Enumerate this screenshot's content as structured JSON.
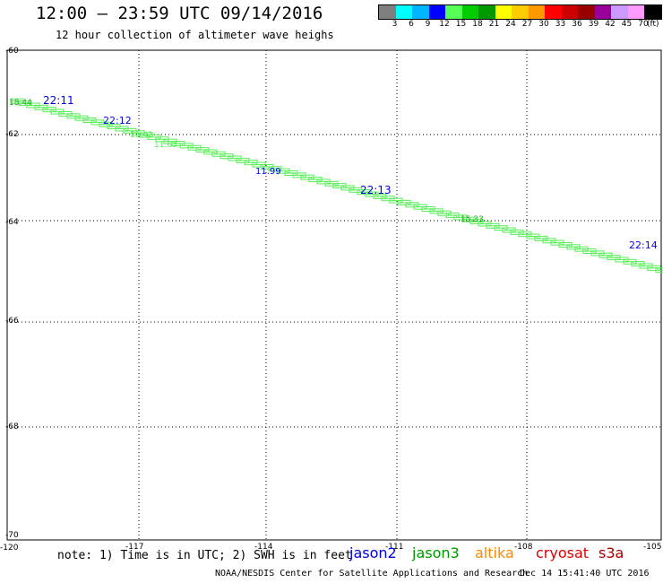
{
  "header": {
    "title": "12:00 – 23:59 UTC 09/14/2016",
    "subtitle": "12 hour collection of altimeter wave heighs"
  },
  "legend": {
    "colors": [
      "#7f7f7f",
      "#00ffff",
      "#00b4ff",
      "#0000ff",
      "#55ff55",
      "#00cc00",
      "#009900",
      "#ffff00",
      "#ffcc00",
      "#ff9900",
      "#ff0000",
      "#cc0000",
      "#990000",
      "#990099",
      "#cc99ff",
      "#ff99ff",
      "#000000"
    ],
    "labels": [
      "3",
      "6",
      "9",
      "12",
      "15",
      "18",
      "21",
      "24",
      "27",
      "30",
      "33",
      "36",
      "39",
      "42",
      "45",
      "70"
    ],
    "unit": "(ft)"
  },
  "axes": {
    "lat_ticks": [
      "-60",
      "-62",
      "-64",
      "-66",
      "-68",
      "-70"
    ],
    "lon_ticks": [
      "-120",
      "-117",
      "-114",
      "-111",
      "-108",
      "-105"
    ]
  },
  "tracks": {
    "jason3_color": "#22aa22",
    "jason3_light_color": "#55ee55",
    "jason2_color": "#0000ee",
    "labels": [
      {
        "text": "18.44",
        "color": "#22aa22"
      },
      {
        "text": "22:11",
        "color": "#0000ee"
      },
      {
        "text": "22:12",
        "color": "#0000ee"
      },
      {
        "text": "15.42",
        "color": "#55ee55"
      },
      {
        "text": "11.63",
        "color": "#55ee55"
      },
      {
        "text": "11.99",
        "color": "#0000ee"
      },
      {
        "text": "22:13",
        "color": "#0000ee"
      },
      {
        "text": "15.33",
        "color": "#22aa22"
      },
      {
        "text": "22:14",
        "color": "#0000ee"
      }
    ]
  },
  "footer": {
    "note": "note: 1) Time is in UTC; 2) SWH is in feet",
    "missions": [
      {
        "name": "jason2",
        "color": "#0000dd"
      },
      {
        "name": "jason3",
        "color": "#009900"
      },
      {
        "name": "altika",
        "color": "#ff8800"
      },
      {
        "name": "cryosat",
        "color": "#dd0000"
      },
      {
        "name": "s3a",
        "color": "#aa0000"
      }
    ],
    "credit": "NOAA/NESDIS Center for Satellite Applications and Research",
    "timestamp": "Dec 14 15:41:40 UTC 2016"
  }
}
